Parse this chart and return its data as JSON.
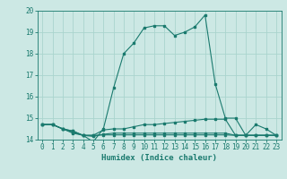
{
  "title": "",
  "xlabel": "Humidex (Indice chaleur)",
  "background_color": "#cce8e4",
  "grid_color": "#aad4ce",
  "line_color": "#1a7a6e",
  "xlim": [
    -0.5,
    23.5
  ],
  "ylim": [
    14.0,
    20.0
  ],
  "yticks": [
    14,
    15,
    16,
    17,
    18,
    19,
    20
  ],
  "xticks": [
    0,
    1,
    2,
    3,
    4,
    5,
    6,
    7,
    8,
    9,
    10,
    11,
    12,
    13,
    14,
    15,
    16,
    17,
    18,
    19,
    20,
    21,
    22,
    23
  ],
  "series": [
    {
      "x": [
        0,
        1,
        2,
        3,
        4,
        5,
        6,
        7,
        8,
        9,
        10,
        11,
        12,
        13,
        14,
        15,
        16,
        17,
        18,
        19,
        20,
        21,
        22,
        23
      ],
      "y": [
        14.7,
        14.7,
        14.5,
        14.4,
        14.2,
        13.9,
        14.5,
        16.4,
        18.0,
        18.5,
        19.2,
        19.3,
        19.3,
        18.85,
        19.0,
        19.25,
        19.8,
        16.6,
        15.0,
        15.0,
        14.2,
        14.7,
        14.5,
        14.2
      ]
    },
    {
      "x": [
        0,
        1,
        2,
        3,
        4,
        5,
        6,
        7,
        8,
        9,
        10,
        11,
        12,
        13,
        14,
        15,
        16,
        17,
        18,
        19,
        20,
        21,
        22,
        23
      ],
      "y": [
        14.7,
        14.7,
        14.5,
        14.4,
        14.2,
        14.2,
        14.45,
        14.5,
        14.5,
        14.6,
        14.7,
        14.7,
        14.75,
        14.8,
        14.85,
        14.9,
        14.95,
        14.95,
        14.95,
        14.2,
        14.2,
        14.2,
        14.2,
        14.2
      ]
    },
    {
      "x": [
        0,
        1,
        2,
        3,
        4,
        5,
        6,
        7,
        8,
        9,
        10,
        11,
        12,
        13,
        14,
        15,
        16,
        17,
        18,
        19,
        20,
        21,
        22,
        23
      ],
      "y": [
        14.7,
        14.7,
        14.5,
        14.3,
        14.2,
        14.15,
        14.25,
        14.3,
        14.3,
        14.3,
        14.3,
        14.3,
        14.3,
        14.3,
        14.3,
        14.3,
        14.3,
        14.3,
        14.3,
        14.2,
        14.2,
        14.2,
        14.2,
        14.2
      ]
    },
    {
      "x": [
        0,
        1,
        2,
        3,
        4,
        5,
        6,
        7,
        8,
        9,
        10,
        11,
        12,
        13,
        14,
        15,
        16,
        17,
        18,
        19,
        20,
        21,
        22,
        23
      ],
      "y": [
        14.7,
        14.7,
        14.5,
        14.35,
        14.2,
        14.2,
        14.22,
        14.22,
        14.22,
        14.22,
        14.22,
        14.22,
        14.22,
        14.22,
        14.22,
        14.22,
        14.22,
        14.22,
        14.22,
        14.2,
        14.2,
        14.2,
        14.2,
        14.2
      ]
    }
  ]
}
